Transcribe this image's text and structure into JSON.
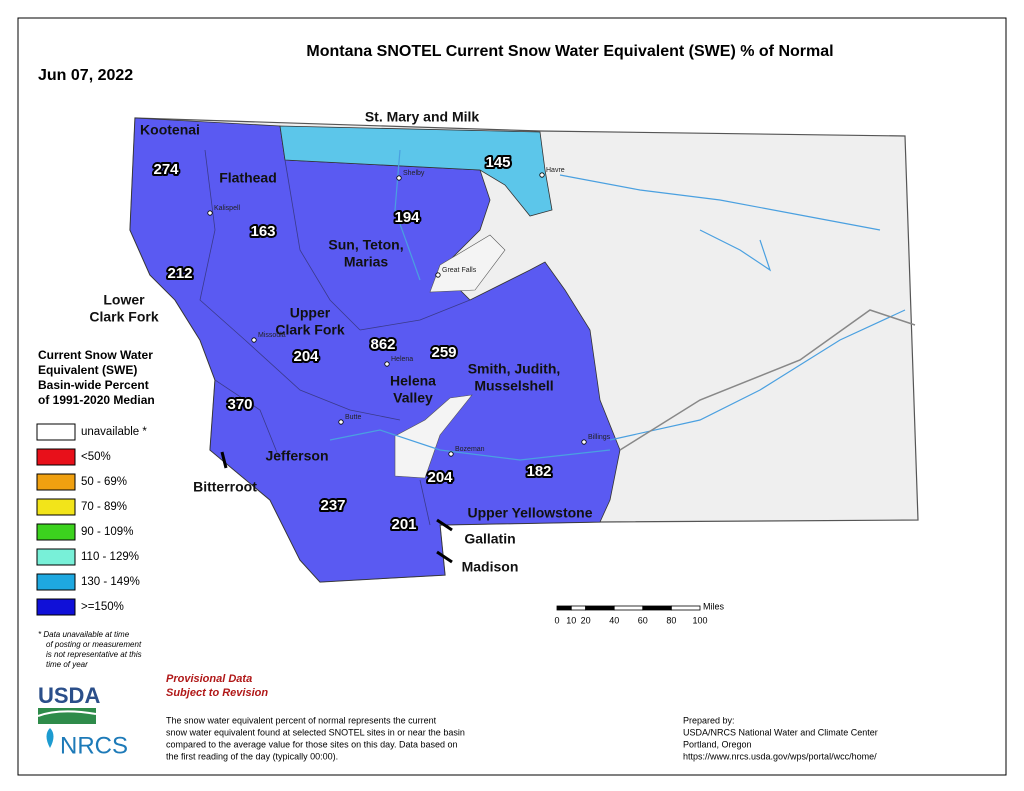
{
  "header": {
    "title": "Montana SNOTEL Current Snow Water Equivalent (SWE) % of Normal",
    "date": "Jun 07, 2022"
  },
  "map": {
    "basins": [
      {
        "name_lines": [
          "Kootenai"
        ],
        "value": 274
      },
      {
        "name_lines": [
          "Flathead"
        ],
        "value": 163
      },
      {
        "name_lines": [
          "St. Mary and Milk"
        ],
        "value": 145
      },
      {
        "name_lines": [
          "Sun, Teton,",
          "Marias"
        ],
        "value": 194
      },
      {
        "name_lines": [
          "Lower",
          "Clark Fork"
        ],
        "value": 212
      },
      {
        "name_lines": [
          "Upper",
          "Clark Fork"
        ],
        "value": 204
      },
      {
        "name_lines": [
          "Helena",
          "Valley"
        ],
        "value": 862
      },
      {
        "name_lines": [
          "Smith, Judith,",
          "Musselshell"
        ],
        "value": 259
      },
      {
        "name_lines": [
          "Bitterroot"
        ],
        "value": 370
      },
      {
        "name_lines": [
          "Jefferson"
        ],
        "value": 237
      },
      {
        "name_lines": [
          "Madison"
        ],
        "value": 201
      },
      {
        "name_lines": [
          "Gallatin"
        ],
        "value": 204
      },
      {
        "name_lines": [
          "Upper Yellowstone"
        ],
        "value": 182
      }
    ],
    "cities": [
      "Kalispell",
      "Shelby",
      "Havre",
      "Great Falls",
      "Missoula",
      "Helena",
      "Butte",
      "Bozeman",
      "Billings"
    ]
  },
  "legend": {
    "title_lines": [
      "Current Snow Water",
      "Equivalent (SWE)",
      "Basin-wide Percent",
      "of 1991-2020 Median"
    ],
    "items": [
      {
        "label": "unavailable *",
        "color": "#ffffff"
      },
      {
        "label": "<50%",
        "color": "#e8101a"
      },
      {
        "label": "50 - 69%",
        "color": "#f0a010"
      },
      {
        "label": "70 - 89%",
        "color": "#f2e41a"
      },
      {
        "label": "90 - 109%",
        "color": "#3cd21e"
      },
      {
        "label": "110 - 129%",
        "color": "#78f0d8"
      },
      {
        "label": "130 - 149%",
        "color": "#1ea8e0"
      },
      {
        "label": ">=150%",
        "color": "#1010d8"
      }
    ],
    "footnote_lines": [
      "*  Data unavailable at time",
      "of posting or measurement",
      "is not representative at this",
      "time of year"
    ]
  },
  "scale_bar": {
    "ticks": [
      0,
      10,
      20,
      40,
      60,
      80,
      100
    ],
    "unit": "Miles"
  },
  "provisional_lines": [
    "Provisional Data",
    "Subject to Revision"
  ],
  "description_lines": [
    "The snow water equivalent percent of normal represents the current",
    "snow water equivalent found at selected SNOTEL sites in or near the basin",
    "compared to the average value for those sites on this day. Data based on",
    "the first reading of the day (typically 00:00)."
  ],
  "prepared_by_lines": [
    "Prepared by:",
    "USDA/NRCS National Water and Climate Center",
    "Portland, Oregon",
    "https://www.nrcs.usda.gov/wps/portal/wcc/home/"
  ],
  "logos": {
    "usda": "USDA",
    "nrcs": "NRCS"
  }
}
